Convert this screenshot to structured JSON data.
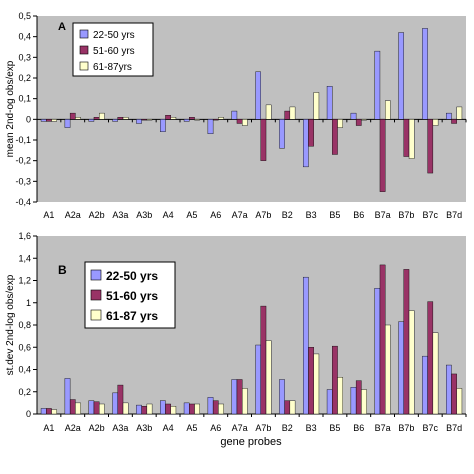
{
  "colors": {
    "series": [
      "#9999ff",
      "#993366",
      "#ffffcc"
    ],
    "plot_bg": "#c0c0c0"
  },
  "chart_data": [
    {
      "type": "bar",
      "panel_label": "A",
      "ylabel": "mean 2nd-og obs/exp",
      "xlabel": "",
      "ylim": [
        -0.4,
        0.5
      ],
      "ytick_step": 0.1,
      "ytick_labels": [
        "-0,4",
        "-0,3",
        "-0,2",
        "-0,1",
        "0",
        "0,1",
        "0,2",
        "0,3",
        "0,4",
        "0,5"
      ],
      "grid": false,
      "legend_position": "top-left",
      "categories": [
        "A1",
        "A2a",
        "A2b",
        "A3a",
        "A3b",
        "A4",
        "A5",
        "A6",
        "A7a",
        "A7b",
        "B2",
        "B3",
        "B5",
        "B6",
        "B7a",
        "B7b",
        "B7c",
        "B7d"
      ],
      "series": [
        {
          "name": "22-50 yrs",
          "values": [
            -0.01,
            -0.04,
            -0.01,
            -0.01,
            -0.02,
            -0.06,
            -0.01,
            -0.07,
            0.04,
            0.23,
            -0.14,
            -0.23,
            0.16,
            0.03,
            0.33,
            0.42,
            0.44,
            0.03
          ]
        },
        {
          "name": "51-60 yrs",
          "values": [
            -0.01,
            0.03,
            0.01,
            0.01,
            0.0,
            0.02,
            0.01,
            0.0,
            -0.02,
            -0.2,
            0.04,
            -0.13,
            -0.17,
            -0.03,
            -0.35,
            -0.18,
            -0.26,
            -0.02
          ]
        },
        {
          "name": "61-87yrs",
          "values": [
            -0.01,
            0.01,
            0.03,
            0.01,
            0.0,
            0.01,
            0.0,
            0.01,
            -0.03,
            0.07,
            0.06,
            0.13,
            -0.04,
            0.0,
            0.09,
            -0.19,
            -0.03,
            0.06
          ]
        }
      ]
    },
    {
      "type": "bar",
      "panel_label": "B",
      "ylabel": "st.dev 2nd-log obs/exp",
      "xlabel": "gene probes",
      "ylim": [
        0,
        1.6
      ],
      "ytick_step": 0.2,
      "ytick_labels": [
        "0",
        "0,2",
        "0,4",
        "0,6",
        "0,8",
        "1",
        "1,2",
        "1,4",
        "1,6"
      ],
      "grid": false,
      "legend_position": "top-left",
      "categories": [
        "A1",
        "A2a",
        "A2b",
        "A3a",
        "A3b",
        "A4",
        "A5",
        "A6",
        "A7a",
        "A7b",
        "B2",
        "B3",
        "B5",
        "B6",
        "B7a",
        "B7b",
        "B7c",
        "B7d"
      ],
      "series": [
        {
          "name": "22-50 yrs",
          "values": [
            0.05,
            0.32,
            0.12,
            0.19,
            0.08,
            0.12,
            0.1,
            0.15,
            0.31,
            0.62,
            0.31,
            1.23,
            0.22,
            0.24,
            1.13,
            0.83,
            0.52,
            0.44
          ]
        },
        {
          "name": "51-60 yrs",
          "values": [
            0.05,
            0.13,
            0.11,
            0.26,
            0.07,
            0.09,
            0.09,
            0.12,
            0.31,
            0.97,
            0.12,
            0.6,
            0.61,
            0.3,
            1.34,
            1.3,
            1.01,
            0.36
          ]
        },
        {
          "name": "61-87 yrs",
          "values": [
            0.04,
            0.1,
            0.09,
            0.1,
            0.09,
            0.07,
            0.09,
            0.09,
            0.23,
            0.66,
            0.12,
            0.54,
            0.33,
            0.22,
            0.8,
            0.93,
            0.73,
            0.23
          ]
        }
      ]
    }
  ]
}
